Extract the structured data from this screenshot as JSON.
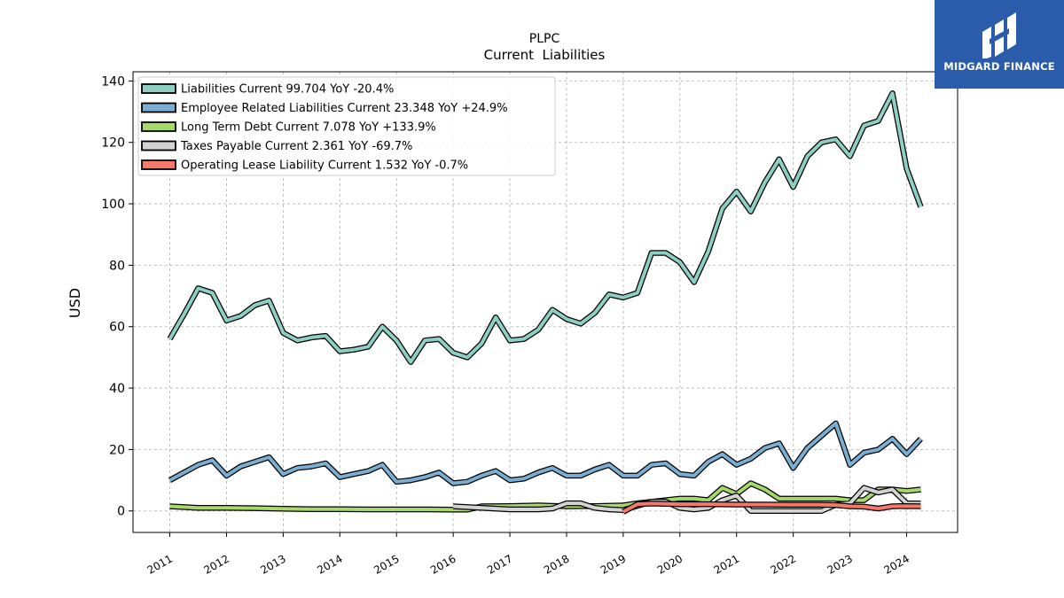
{
  "brand": {
    "name": "MIDGARD FINANCE",
    "bg_color": "#2b5cab"
  },
  "chart_data": {
    "type": "line",
    "title": "PLPC",
    "subtitle": "Current  Liabilities",
    "ylabel": "USD",
    "xlabel": "",
    "ylim": [
      -7,
      143
    ],
    "xlim": [
      2010.35,
      2024.9
    ],
    "yticks": [
      0,
      20,
      40,
      60,
      80,
      100,
      120,
      140
    ],
    "xticks": [
      2011,
      2012,
      2013,
      2014,
      2015,
      2016,
      2017,
      2018,
      2019,
      2020,
      2021,
      2022,
      2023,
      2024
    ],
    "xtick_labels": [
      "2011",
      "2012",
      "2013",
      "2014",
      "2015",
      "2016",
      "2017",
      "2018",
      "2019",
      "2020",
      "2021",
      "2022",
      "2023",
      "2024"
    ],
    "grid": true,
    "legend_position": "top-left",
    "series": [
      {
        "name": "Liabilities Current  99.704 YoY -20.4%",
        "color": "#8ecfc3",
        "points": [
          [
            2011.0,
            56
          ],
          [
            2011.25,
            64
          ],
          [
            2011.5,
            72.5
          ],
          [
            2011.75,
            71
          ],
          [
            2012.0,
            62
          ],
          [
            2012.25,
            63.5
          ],
          [
            2012.5,
            67
          ],
          [
            2012.75,
            68.5
          ],
          [
            2013.0,
            58
          ],
          [
            2013.25,
            55.5
          ],
          [
            2013.5,
            56.5
          ],
          [
            2013.75,
            57
          ],
          [
            2014.0,
            52
          ],
          [
            2014.25,
            52.5
          ],
          [
            2014.5,
            53.5
          ],
          [
            2014.75,
            60
          ],
          [
            2015.0,
            55.5
          ],
          [
            2015.25,
            48.5
          ],
          [
            2015.5,
            55.5
          ],
          [
            2015.75,
            56
          ],
          [
            2016.0,
            51.5
          ],
          [
            2016.25,
            50
          ],
          [
            2016.5,
            54.5
          ],
          [
            2016.75,
            63
          ],
          [
            2017.0,
            55.5
          ],
          [
            2017.25,
            56
          ],
          [
            2017.5,
            59
          ],
          [
            2017.75,
            65.5
          ],
          [
            2018.0,
            62.5
          ],
          [
            2018.25,
            61
          ],
          [
            2018.5,
            64.5
          ],
          [
            2018.75,
            70.5
          ],
          [
            2019.0,
            69.5
          ],
          [
            2019.25,
            71
          ],
          [
            2019.5,
            84
          ],
          [
            2019.75,
            84
          ],
          [
            2020.0,
            81
          ],
          [
            2020.25,
            74.5
          ],
          [
            2020.5,
            84.5
          ],
          [
            2020.75,
            98.5
          ],
          [
            2021.0,
            104
          ],
          [
            2021.25,
            97.5
          ],
          [
            2021.5,
            107
          ],
          [
            2021.75,
            114.5
          ],
          [
            2022.0,
            105.5
          ],
          [
            2022.25,
            115.5
          ],
          [
            2022.5,
            120
          ],
          [
            2022.75,
            121
          ],
          [
            2023.0,
            115.5
          ],
          [
            2023.25,
            125.5
          ],
          [
            2023.5,
            127
          ],
          [
            2023.75,
            136
          ],
          [
            2024.0,
            111.5
          ],
          [
            2024.25,
            99
          ]
        ]
      },
      {
        "name": "Employee Related Liabilities Current  23.348 YoY +24.9%",
        "color": "#7aaed3",
        "points": [
          [
            2011.0,
            10
          ],
          [
            2011.25,
            12.5
          ],
          [
            2011.5,
            15
          ],
          [
            2011.75,
            16.5
          ],
          [
            2012.0,
            11.5
          ],
          [
            2012.25,
            14.5
          ],
          [
            2012.5,
            16
          ],
          [
            2012.75,
            17.5
          ],
          [
            2013.0,
            12
          ],
          [
            2013.25,
            14
          ],
          [
            2013.5,
            14.5
          ],
          [
            2013.75,
            15.5
          ],
          [
            2014.0,
            11
          ],
          [
            2014.25,
            12
          ],
          [
            2014.5,
            13
          ],
          [
            2014.75,
            15
          ],
          [
            2015.0,
            9.5
          ],
          [
            2015.25,
            10
          ],
          [
            2015.5,
            11
          ],
          [
            2015.75,
            12.5
          ],
          [
            2016.0,
            9
          ],
          [
            2016.25,
            9.5
          ],
          [
            2016.5,
            11.5
          ],
          [
            2016.75,
            13
          ],
          [
            2017.0,
            10
          ],
          [
            2017.25,
            10.5
          ],
          [
            2017.5,
            12.5
          ],
          [
            2017.75,
            14
          ],
          [
            2018.0,
            11.5
          ],
          [
            2018.25,
            11.5
          ],
          [
            2018.5,
            13.5
          ],
          [
            2018.75,
            15
          ],
          [
            2019.0,
            11.5
          ],
          [
            2019.25,
            11.5
          ],
          [
            2019.5,
            15
          ],
          [
            2019.75,
            15.5
          ],
          [
            2020.0,
            12
          ],
          [
            2020.25,
            11.5
          ],
          [
            2020.5,
            16
          ],
          [
            2020.75,
            18.5
          ],
          [
            2021.0,
            15
          ],
          [
            2021.25,
            17
          ],
          [
            2021.5,
            20.5
          ],
          [
            2021.75,
            22
          ],
          [
            2022.0,
            14
          ],
          [
            2022.25,
            20.5
          ],
          [
            2022.5,
            24.5
          ],
          [
            2022.75,
            28.5
          ],
          [
            2023.0,
            15
          ],
          [
            2023.25,
            19
          ],
          [
            2023.5,
            20
          ],
          [
            2023.75,
            23.5
          ],
          [
            2024.0,
            18.5
          ],
          [
            2024.25,
            23.5
          ]
        ]
      },
      {
        "name": "Long Term Debt Current  7.078 YoY +133.9%",
        "color": "#a6d96a",
        "points": [
          [
            2011.0,
            1.5
          ],
          [
            2011.5,
            1
          ],
          [
            2012.0,
            1
          ],
          [
            2012.5,
            0.9
          ],
          [
            2013.0,
            0.7
          ],
          [
            2013.5,
            0.6
          ],
          [
            2014.0,
            0.6
          ],
          [
            2014.5,
            0.5
          ],
          [
            2015.0,
            0.5
          ],
          [
            2015.5,
            0.5
          ],
          [
            2016.0,
            0.4
          ],
          [
            2016.25,
            0.4
          ],
          [
            2016.5,
            1.5
          ],
          [
            2017.0,
            1.6
          ],
          [
            2017.5,
            1.8
          ],
          [
            2018.0,
            1.5
          ],
          [
            2018.5,
            1.6
          ],
          [
            2019.0,
            1.8
          ],
          [
            2019.25,
            2.5
          ],
          [
            2019.5,
            3
          ],
          [
            2019.75,
            3.5
          ],
          [
            2020.0,
            4
          ],
          [
            2020.25,
            4
          ],
          [
            2020.5,
            3.5
          ],
          [
            2020.75,
            7.5
          ],
          [
            2021.0,
            5.5
          ],
          [
            2021.25,
            9
          ],
          [
            2021.5,
            7
          ],
          [
            2021.75,
            4
          ],
          [
            2022.0,
            4
          ],
          [
            2022.25,
            4
          ],
          [
            2022.5,
            4
          ],
          [
            2022.75,
            4
          ],
          [
            2023.0,
            3.5
          ],
          [
            2023.25,
            3.5
          ],
          [
            2023.5,
            7
          ],
          [
            2023.75,
            7
          ],
          [
            2024.0,
            6.5
          ],
          [
            2024.25,
            7
          ]
        ]
      },
      {
        "name": "Taxes Payable Current  2.361 YoY -69.7%",
        "color": "#d3d3d3",
        "points": [
          [
            2016.0,
            1.5
          ],
          [
            2016.5,
            1
          ],
          [
            2017.0,
            0.5
          ],
          [
            2017.5,
            0.5
          ],
          [
            2017.75,
            0.8
          ],
          [
            2018.0,
            2.5
          ],
          [
            2018.25,
            2.5
          ],
          [
            2018.5,
            1
          ],
          [
            2018.75,
            0.5
          ],
          [
            2019.0,
            0.3
          ],
          [
            2019.5,
            3
          ],
          [
            2019.75,
            3
          ],
          [
            2020.0,
            1
          ],
          [
            2020.25,
            0.5
          ],
          [
            2020.5,
            1
          ],
          [
            2020.75,
            3.5
          ],
          [
            2021.0,
            5
          ],
          [
            2021.25,
            0
          ],
          [
            2021.5,
            0
          ],
          [
            2021.75,
            0
          ],
          [
            2022.0,
            0
          ],
          [
            2022.5,
            0
          ],
          [
            2022.75,
            2
          ],
          [
            2023.0,
            2.5
          ],
          [
            2023.25,
            7.5
          ],
          [
            2023.5,
            6
          ],
          [
            2023.75,
            7
          ],
          [
            2024.0,
            2.5
          ],
          [
            2024.25,
            2.4
          ]
        ]
      },
      {
        "name": "Operating Lease Liability Current  1.532 YoY -0.7%",
        "color": "#f4796b",
        "points": [
          [
            2019.0,
            -0.3
          ],
          [
            2019.25,
            2.2
          ],
          [
            2019.5,
            2.4
          ],
          [
            2019.75,
            2.3
          ],
          [
            2020.0,
            2.2
          ],
          [
            2020.5,
            2.2
          ],
          [
            2021.0,
            2.1
          ],
          [
            2021.5,
            2.1
          ],
          [
            2022.0,
            2
          ],
          [
            2022.5,
            2
          ],
          [
            2022.75,
            1.9
          ],
          [
            2023.0,
            1.5
          ],
          [
            2023.25,
            1.4
          ],
          [
            2023.5,
            0.8
          ],
          [
            2023.75,
            1.5
          ],
          [
            2024.0,
            1.6
          ],
          [
            2024.25,
            1.5
          ]
        ]
      }
    ]
  }
}
